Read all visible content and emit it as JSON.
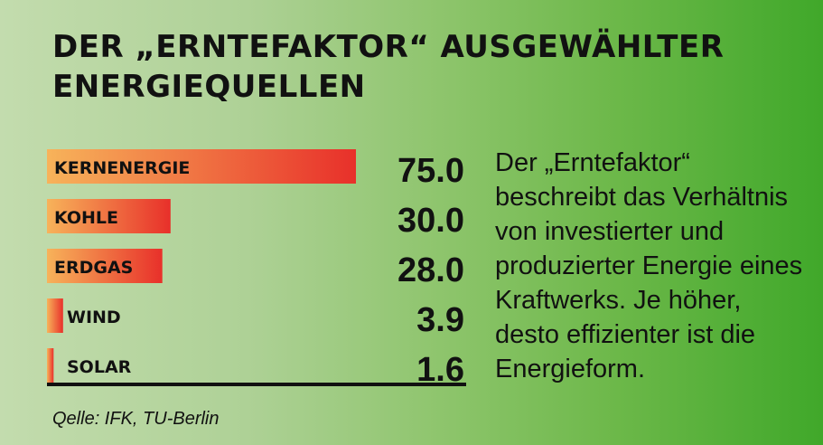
{
  "colors": {
    "bar_start": "#f7b35a",
    "bar_end": "#e8302a",
    "text": "#111111"
  },
  "chart_data": {
    "type": "bar",
    "orientation": "horizontal",
    "title": "DER „ERNTEFAKTOR“ AUSGEWÄHLTER ENERGIEQUELLEN",
    "categories": [
      "KERNENERGIE",
      "KOHLE",
      "ERDGAS",
      "WIND",
      "SOLAR"
    ],
    "values": [
      75.0,
      30.0,
      28.0,
      3.9,
      1.6
    ],
    "value_labels": [
      "75.0",
      "30.0",
      "28.0",
      "3.9",
      "1.6"
    ],
    "xlim": [
      0,
      75
    ],
    "grid": false,
    "legend": "none"
  },
  "description": "Der „Erntefaktor“ beschreibt das Verhältnis von investierter und produzierter Energie eines Kraftwerks. Je höher, desto effizienter ist die Energieform.",
  "source": "Qelle: IFK, TU-Berlin"
}
